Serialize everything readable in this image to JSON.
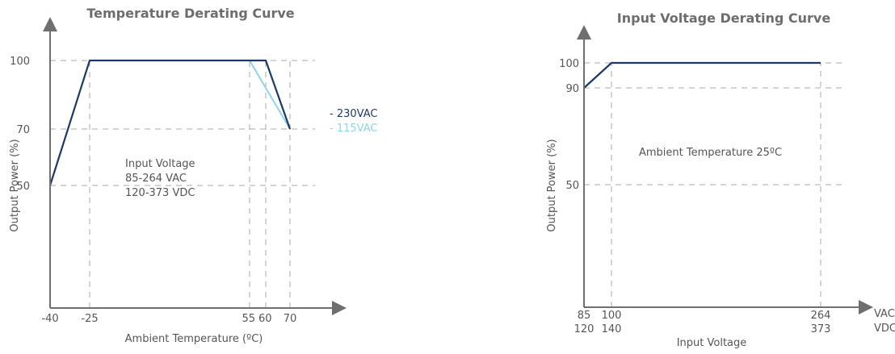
{
  "colors": {
    "series_230": "#1d3a66",
    "series_115": "#8fd3ee",
    "axis": "#6f6f6f",
    "grid": "#a8a8a8",
    "text": "#555555"
  },
  "chart_data": [
    {
      "type": "line",
      "title": "Temperature Derating Curve",
      "xlabel": "Ambient Temperature (ºC)",
      "ylabel": "Output Power (%)",
      "xlim": [
        -40,
        80
      ],
      "ylim": [
        0,
        110
      ],
      "xticks": [
        {
          "value": -40,
          "label": "-40"
        },
        {
          "value": -25,
          "label": "-25"
        },
        {
          "value": 55,
          "label": "55"
        },
        {
          "value": 60,
          "label": "60"
        },
        {
          "value": 70,
          "label": "70"
        }
      ],
      "yticks": [
        {
          "value": 50,
          "label": "50"
        },
        {
          "value": 70,
          "label": "70"
        },
        {
          "value": 100,
          "label": "100"
        }
      ],
      "legend_position": "right",
      "series": [
        {
          "name": "- 230VAC",
          "color": "#1d3a66",
          "points": [
            [
              -40,
              50
            ],
            [
              -25,
              100
            ],
            [
              60,
              100
            ],
            [
              70,
              70
            ]
          ]
        },
        {
          "name": "- 115VAC",
          "color": "#8fd3ee",
          "points": [
            [
              55,
              100
            ],
            [
              70,
              70
            ]
          ]
        }
      ],
      "annotation": [
        "Input Voltage",
        "85-264 VAC",
        "120-373 VDC"
      ]
    },
    {
      "type": "line",
      "title": "Input Voltage Derating Curve",
      "xlabel": "Input Voltage",
      "ylabel": "Output Power (%)",
      "xlim": [
        85,
        280
      ],
      "ylim": [
        0,
        110
      ],
      "xticks": [
        {
          "value": 85,
          "label": "85",
          "label2": "120"
        },
        {
          "value": 100,
          "label": "100",
          "label2": "140"
        },
        {
          "value": 264,
          "label": "264",
          "label2": "373"
        }
      ],
      "x_unit_labels": [
        "VAC",
        "VDC"
      ],
      "yticks": [
        {
          "value": 50,
          "label": "50"
        },
        {
          "value": 90,
          "label": "90"
        },
        {
          "value": 100,
          "label": "100"
        }
      ],
      "series": [
        {
          "name": "",
          "color": "#1d3a66",
          "points": [
            [
              85,
              90
            ],
            [
              100,
              100
            ],
            [
              264,
              100
            ]
          ]
        }
      ],
      "annotation": [
        "Ambient Temperature 25ºC"
      ]
    }
  ]
}
